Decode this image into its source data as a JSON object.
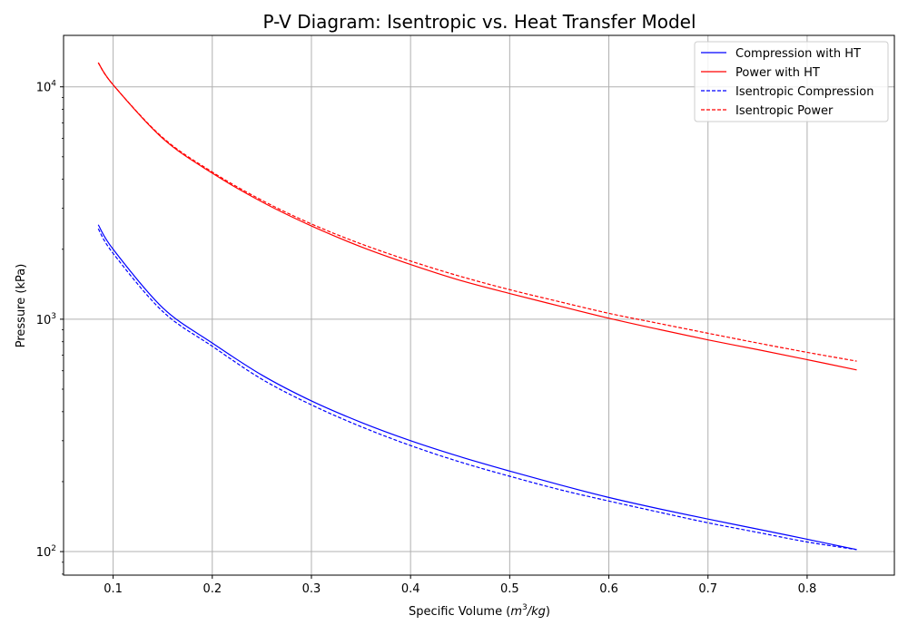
{
  "chart_data": {
    "type": "line",
    "title": "P-V Diagram: Isentropic vs. Heat Transfer Model",
    "xlabel_main": "Specific Volume (",
    "xlabel_unit_base": "m",
    "xlabel_unit_exp": "3",
    "xlabel_unit_rest": "/kg",
    "xlabel_close": ")",
    "ylabel": "Pressure (kPa)",
    "xlim": [
      0.05,
      0.888
    ],
    "ylim": [
      79.2,
      16650
    ],
    "yscale": "log",
    "grid": true,
    "legend_position": "top-right",
    "xticks": [
      0.1,
      0.2,
      0.3,
      0.4,
      0.5,
      0.6,
      0.7,
      0.8
    ],
    "xtick_labels": [
      "0.1",
      "0.2",
      "0.3",
      "0.4",
      "0.5",
      "0.6",
      "0.7",
      "0.8"
    ],
    "yticks": [
      {
        "value": 100,
        "base": "10",
        "exp": "2"
      },
      {
        "value": 1000,
        "base": "10",
        "exp": "3"
      },
      {
        "value": 10000,
        "base": "10",
        "exp": "4"
      }
    ],
    "x": [
      0.085,
      0.1,
      0.15,
      0.2,
      0.25,
      0.3,
      0.35,
      0.4,
      0.45,
      0.5,
      0.55,
      0.6,
      0.65,
      0.7,
      0.75,
      0.8,
      0.85
    ],
    "series": [
      {
        "name": "Compression with HT",
        "color": "#0000ff",
        "dash": "solid",
        "values": [
          2550,
          2000,
          1120,
          790,
          575,
          445,
          360,
          300,
          256,
          222,
          194,
          171,
          153,
          138,
          125,
          113,
          102
        ]
      },
      {
        "name": "Power with HT",
        "color": "#ff0000",
        "dash": "solid",
        "values": [
          12700,
          10200,
          6000,
          4250,
          3200,
          2520,
          2050,
          1720,
          1470,
          1290,
          1140,
          1010,
          905,
          815,
          740,
          670,
          605
        ]
      },
      {
        "name": "Isentropic Compression",
        "color": "#0000ff",
        "dash": "dashed",
        "values": [
          2450,
          1920,
          1080,
          765,
          552,
          428,
          345,
          286,
          243,
          211,
          185,
          165,
          148,
          133,
          121,
          110,
          102
        ]
      },
      {
        "name": "Isentropic Power",
        "color": "#ff0000",
        "dash": "dashed",
        "values": [
          12700,
          10200,
          6050,
          4300,
          3250,
          2570,
          2110,
          1780,
          1530,
          1340,
          1190,
          1060,
          960,
          870,
          790,
          720,
          660
        ]
      }
    ]
  }
}
